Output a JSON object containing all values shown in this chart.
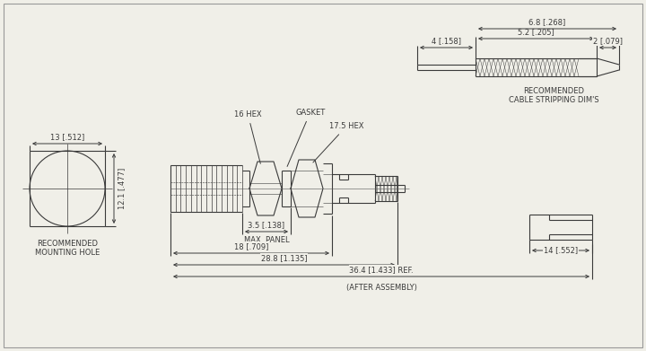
{
  "bg_color": "#f0efe8",
  "line_color": "#3a3a3a",
  "font_size": 6.0,
  "annotations": {
    "gasket": "GASKET",
    "hex16": "16 HEX",
    "hex17": "17.5 HEX",
    "rec_mount": "RECOMMENDED\nMOUNTING HOLE",
    "rec_cable": "RECOMMENDED\nCABLE STRIPPING DIM'S",
    "max_panel": "MAX. PANEL",
    "after_assembly": "(AFTER ASSEMBLY)"
  },
  "dims": {
    "d13": "13 [.512]",
    "d12": "12.1 [.477]",
    "d52": "5.2 [.205]",
    "d68": "6.8 [.268]",
    "d4": "4 [.158]",
    "d2": "2 [.079]",
    "d35": "3.5 [.138]",
    "d18": "18 [.709]",
    "d288": "28.8 [1.135]",
    "d364": "36.4 [1.433] REF.",
    "d14": "14 [.552]"
  }
}
